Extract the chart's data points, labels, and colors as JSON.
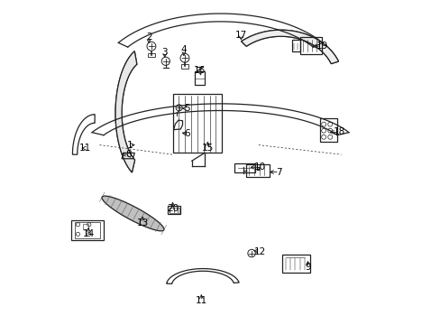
{
  "background_color": "#ffffff",
  "line_color": "#222222",
  "fig_width": 4.89,
  "fig_height": 3.6,
  "dpi": 100,
  "labels": {
    "1": [
      0.215,
      0.555,
      0.025,
      0.0
    ],
    "2": [
      0.275,
      0.895,
      0.0,
      -0.03
    ],
    "3": [
      0.325,
      0.845,
      0.0,
      -0.025
    ],
    "4": [
      0.385,
      0.855,
      0.0,
      -0.03
    ],
    "5": [
      0.395,
      0.67,
      -0.025,
      0.0
    ],
    "6": [
      0.395,
      0.59,
      -0.025,
      0.005
    ],
    "7": [
      0.685,
      0.47,
      -0.04,
      0.0
    ],
    "8": [
      0.21,
      0.525,
      -0.03,
      0.0
    ],
    "9": [
      0.775,
      0.17,
      0.0,
      0.03
    ],
    "10": [
      0.625,
      0.485,
      -0.04,
      0.0
    ],
    "11a": [
      0.075,
      0.545,
      -0.02,
      0.0
    ],
    "11b": [
      0.44,
      0.065,
      0.0,
      0.03
    ],
    "12": [
      0.625,
      0.22,
      -0.03,
      0.005
    ],
    "13": [
      0.255,
      0.31,
      0.0,
      0.03
    ],
    "14": [
      0.085,
      0.275,
      0.0,
      0.03
    ],
    "15": [
      0.46,
      0.545,
      0.0,
      0.03
    ],
    "16": [
      0.435,
      0.79,
      0.005,
      -0.025
    ],
    "17": [
      0.565,
      0.9,
      0.0,
      -0.025
    ],
    "18": [
      0.875,
      0.595,
      -0.04,
      0.0
    ],
    "19": [
      0.82,
      0.865,
      -0.04,
      0.0
    ],
    "20": [
      0.35,
      0.355,
      0.0,
      0.03
    ]
  }
}
